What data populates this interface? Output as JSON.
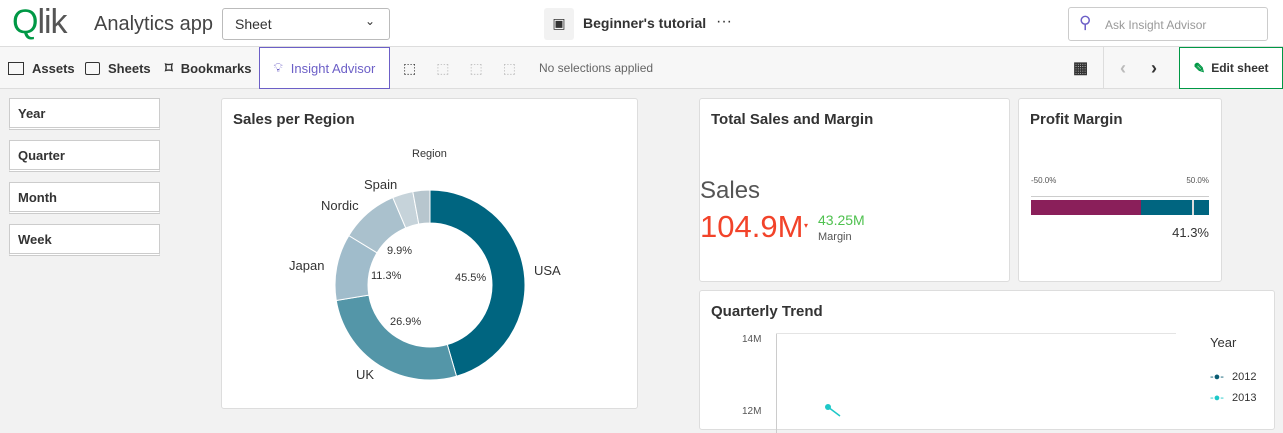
{
  "header": {
    "logo": "Qlik",
    "app_title": "Analytics app",
    "sheet_dropdown": "Sheet",
    "sheet_title": "Beginner's tutorial",
    "more": "···",
    "search_placeholder": "Ask Insight Advisor"
  },
  "toolbar": {
    "assets": "Assets",
    "sheets": "Sheets",
    "bookmarks": "Bookmarks",
    "insight_advisor": "Insight Advisor",
    "selections": "No selections applied",
    "edit_sheet": "Edit sheet",
    "accent": "#6c5fc7",
    "edit_color": "#009845"
  },
  "filters": [
    "Year",
    "Quarter",
    "Month",
    "Week"
  ],
  "sales_region": {
    "title": "Sales per Region",
    "legend_title": "Region",
    "chart_data": {
      "type": "pie",
      "donut": true,
      "categories": [
        "USA",
        "UK",
        "Japan",
        "Nordic",
        "Spain",
        ""
      ],
      "values": [
        45.5,
        26.9,
        11.3,
        9.9,
        3.5,
        2.9
      ],
      "labels": [
        "45.5%",
        "26.9%",
        "11.3%",
        "9.9%",
        "",
        ""
      ],
      "colors": [
        "#006580",
        "#5496a8",
        "#a0bccb",
        "#aac1cd",
        "#c6d3da",
        "#b7c6ce"
      ]
    }
  },
  "kpi": {
    "title": "Total Sales and Margin",
    "main_label": "Sales",
    "main_value": "104.9M",
    "main_color": "#f2432a",
    "sub_value": "43.25M",
    "sub_label": "Margin",
    "sub_color": "#4fc14f"
  },
  "profit": {
    "title": "Profit Margin",
    "min": "-50.0%",
    "max": "50.0%",
    "value": "41.3%",
    "value_num": 41.3,
    "colors": [
      "#8a1f5a",
      "#006580"
    ]
  },
  "trend": {
    "title": "Quarterly Trend",
    "chart_data": {
      "type": "line",
      "y_ticks": [
        "14M",
        "12M"
      ],
      "legend_title": "Year",
      "series": [
        {
          "name": "2012",
          "color": "#0a5c73"
        },
        {
          "name": "2013",
          "color": "#1ec8c8"
        }
      ]
    }
  }
}
